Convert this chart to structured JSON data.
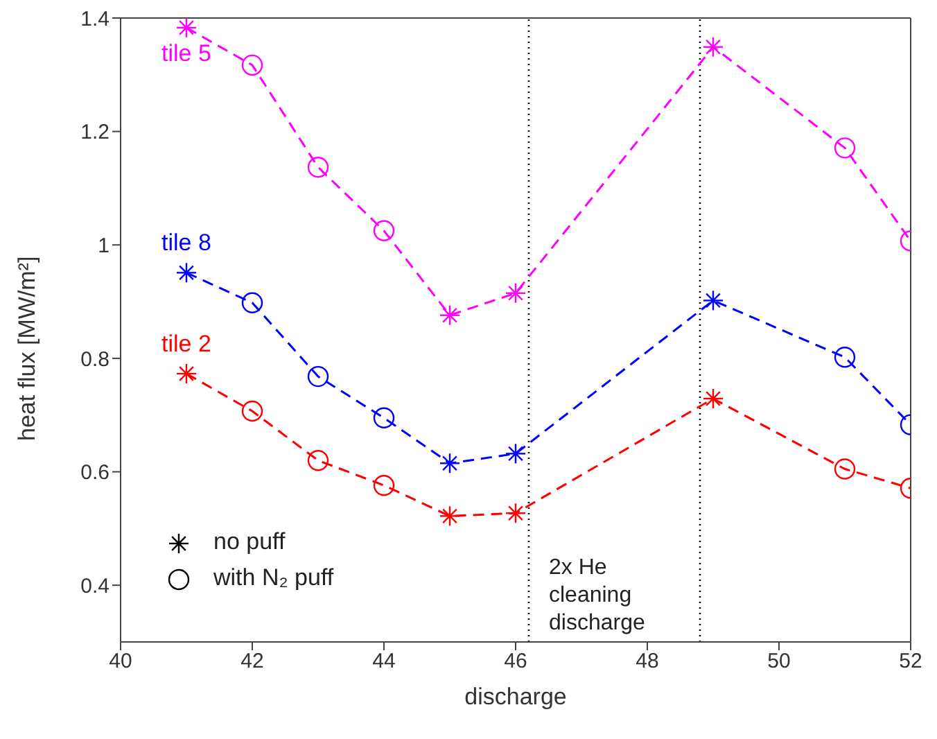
{
  "chart_data": {
    "type": "line",
    "xlabel": "discharge",
    "ylabel": "heat flux [MW/m²]",
    "x": [
      41,
      42,
      43,
      44,
      45,
      46,
      49,
      51,
      52
    ],
    "series": [
      {
        "name": "tile 5",
        "color": "#ff00ff",
        "line_style": "dashed",
        "marker": "none",
        "values": [
          1.383,
          1.317,
          1.137,
          1.025,
          0.876,
          0.915,
          1.349,
          1.171,
          1.007
        ]
      },
      {
        "name": "tile 8",
        "color": "#0000ff",
        "line_style": "dashed",
        "marker": "none",
        "values": [
          0.951,
          0.898,
          0.768,
          0.695,
          0.615,
          0.632,
          0.902,
          0.802,
          0.683
        ]
      },
      {
        "name": "tile 2",
        "color": "#ff0000",
        "line_style": "dashed",
        "marker": "none",
        "values": [
          0.773,
          0.707,
          0.62,
          0.576,
          0.522,
          0.527,
          0.729,
          0.605,
          0.571
        ]
      },
      {
        "type": "scatter",
        "marker": "cross",
        "color": "#000000",
        "x": [
          41,
          45,
          46,
          49,
          41,
          45,
          46,
          49,
          41,
          45,
          46,
          49
        ],
        "values": [
          1.383,
          0.876,
          0.915,
          1.349,
          0.951,
          0.615,
          0.632,
          0.902,
          0.773,
          0.522,
          0.527,
          0.729
        ],
        "colors": [
          "#ff00ff",
          "#ff00ff",
          "#ff00ff",
          "#ff00ff",
          "#0000ff",
          "#0000ff",
          "#0000ff",
          "#0000ff",
          "#ff0000",
          "#ff0000",
          "#ff0000",
          "#ff0000"
        ]
      },
      {
        "type": "scatter",
        "marker": "circle",
        "color": "#000000",
        "x": [
          42,
          43,
          44,
          51,
          52,
          42,
          43,
          44,
          51,
          52,
          42,
          43,
          44,
          51,
          52
        ],
        "values": [
          1.317,
          1.137,
          1.025,
          1.171,
          1.007,
          0.898,
          0.768,
          0.695,
          0.802,
          0.683,
          0.707,
          0.62,
          0.576,
          0.605,
          0.571
        ],
        "colors": [
          "#ff00ff",
          "#ff00ff",
          "#ff00ff",
          "#ff00ff",
          "#ff00ff",
          "#0000ff",
          "#0000ff",
          "#0000ff",
          "#0000ff",
          "#0000ff",
          "#ff0000",
          "#ff0000",
          "#ff0000",
          "#ff0000",
          "#ff0000"
        ]
      }
    ],
    "xlim": [
      40,
      52
    ],
    "xticks": [
      40,
      42,
      44,
      46,
      48,
      50,
      52
    ],
    "ylim": [
      0.3,
      1.4
    ],
    "yticks": [
      0.4,
      0.6,
      0.8,
      1,
      1.2,
      1.4
    ],
    "ref_lines": [
      {
        "axis": "x",
        "value": 46.2,
        "color": "#000000",
        "line_style": "dotted"
      },
      {
        "axis": "x",
        "value": 48.8,
        "color": "#000000",
        "line_style": "dotted"
      }
    ],
    "annotations": [
      "no puff",
      "with N₂ puff",
      "2x He cleaning discharge"
    ],
    "grid": false
  }
}
